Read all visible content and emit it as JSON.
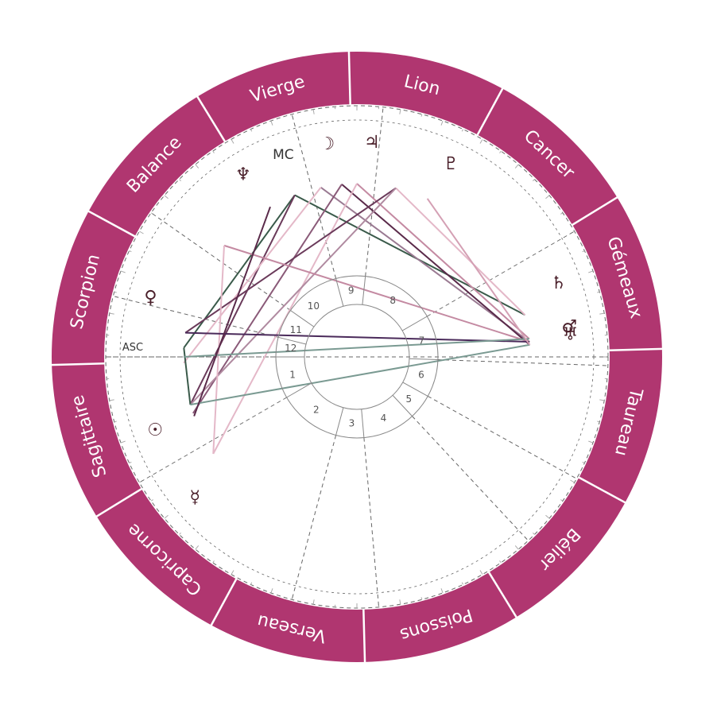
{
  "colors": {
    "wheel": "#b03670",
    "sign_divider": "#ffffff",
    "dashed": "#666666",
    "house_ring": "#888888",
    "planet_glyph": "#4a1f2a"
  },
  "zodiac": [
    {
      "name": "Vierge",
      "angle": 106.5
    },
    {
      "name": "Lion",
      "angle": 76.5
    },
    {
      "name": "Cancer",
      "angle": 46.5
    },
    {
      "name": "Gémeaux",
      "angle": 16.5
    },
    {
      "name": "Taureau",
      "angle": -13.5
    },
    {
      "name": "Bélier",
      "angle": -43.5
    },
    {
      "name": "Poissons",
      "angle": -73.5
    },
    {
      "name": "Verseau",
      "angle": -103.5
    },
    {
      "name": "Capricorne",
      "angle": -133.5
    },
    {
      "name": "Sagittaire",
      "angle": -163.5
    },
    {
      "name": "Scorpion",
      "angle": 166.5
    },
    {
      "name": "Balance",
      "angle": 136.5
    }
  ],
  "houses": [
    {
      "num": "1",
      "angle": 195.5
    },
    {
      "num": "2",
      "angle": 232.5
    },
    {
      "num": "3",
      "angle": 265.5
    },
    {
      "num": "4",
      "angle": 293.5
    },
    {
      "num": "5",
      "angle": 321
    },
    {
      "num": "6",
      "angle": 344.5
    },
    {
      "num": "7",
      "angle": 14
    },
    {
      "num": "8",
      "angle": 57.5
    },
    {
      "num": "9",
      "angle": 95
    },
    {
      "num": "10",
      "angle": 130.5
    },
    {
      "num": "11",
      "angle": 156
    },
    {
      "num": "12",
      "angle": 172.5
    }
  ],
  "house_cusps": [
    180,
    210,
    255,
    275,
    313,
    331,
    358,
    30,
    84,
    105,
    145,
    166
  ],
  "angles": {
    "asc": {
      "label": "ASC",
      "angle": 180
    },
    "mc": {
      "label": "MC",
      "angle": 112
    }
  },
  "planets": [
    {
      "name": "moon",
      "glyph": "☽",
      "angle": 98
    },
    {
      "name": "jupiter",
      "glyph": "♃",
      "angle": 86
    },
    {
      "name": "pluto",
      "glyph": "♇",
      "angle": 64
    },
    {
      "name": "neptune",
      "glyph": "♆",
      "angle": 122
    },
    {
      "name": "venus",
      "glyph": "♀",
      "angle": 164
    },
    {
      "name": "sun",
      "glyph": "☉",
      "angle": 200
    },
    {
      "name": "mercury",
      "glyph": "☿",
      "angle": 221
    },
    {
      "name": "saturn",
      "glyph": "♄",
      "angle": 20
    },
    {
      "name": "mars",
      "glyph": "♂",
      "angle": 8
    },
    {
      "name": "uranus",
      "glyph": "♅",
      "angle": 6
    }
  ],
  "aspects": [
    {
      "from": 111,
      "to": 14,
      "color": "#3a5a4a"
    },
    {
      "from": 111,
      "to": 177,
      "color": "#3a5a4a"
    },
    {
      "from": 111,
      "to": 196,
      "color": "#6a3a5a"
    },
    {
      "from": 102,
      "to": 5,
      "color": "#9a7a92"
    },
    {
      "from": 102,
      "to": 182,
      "color": "#e4b8c8"
    },
    {
      "from": 95,
      "to": 4,
      "color": "#5a2a4a"
    },
    {
      "from": 95,
      "to": 199,
      "color": "#8a5a78"
    },
    {
      "from": 90,
      "to": 6,
      "color": "#c48aa2"
    },
    {
      "from": 90,
      "to": 214,
      "color": "#e4b8c8"
    },
    {
      "from": 77,
      "to": 14,
      "color": "#e4b8c8"
    },
    {
      "from": 77,
      "to": 172,
      "color": "#6a3a5a"
    },
    {
      "from": 77,
      "to": 196,
      "color": "#b08aa0"
    },
    {
      "from": 140,
      "to": 5,
      "color": "#c48aa2"
    },
    {
      "from": 140,
      "to": 214,
      "color": "#e4b8c8"
    },
    {
      "from": 172,
      "to": 5,
      "color": "#4a2a5a"
    },
    {
      "from": 177,
      "to": 196,
      "color": "#3a5a4a"
    },
    {
      "from": 180,
      "to": 6,
      "color": "#7a9a92"
    },
    {
      "from": 196,
      "to": 4,
      "color": "#7a9a92"
    },
    {
      "from": 120,
      "to": 200,
      "color": "#5a2a4a"
    },
    {
      "from": 66,
      "to": 4,
      "color": "#d4a0b4"
    }
  ]
}
